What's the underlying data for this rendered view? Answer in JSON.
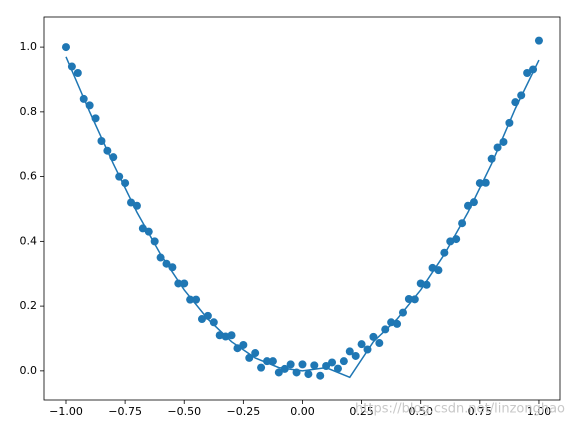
{
  "chart_data": {
    "type": "scatter",
    "xlim": [
      -1.093,
      1.089
    ],
    "ylim": [
      -0.09,
      1.093
    ],
    "xticks": [
      {
        "value": -1,
        "label": "−1.00"
      },
      {
        "value": -0.75,
        "label": "−0.75"
      },
      {
        "value": -0.5,
        "label": "−0.50"
      },
      {
        "value": -0.25,
        "label": "−0.25"
      },
      {
        "value": 0,
        "label": "0.00"
      },
      {
        "value": 0.25,
        "label": "0.25"
      },
      {
        "value": 0.5,
        "label": "0.50"
      },
      {
        "value": 0.75,
        "label": "0.75"
      },
      {
        "value": 1,
        "label": "1.00"
      }
    ],
    "yticks": [
      {
        "value": 0,
        "label": "0.0"
      },
      {
        "value": 0.2,
        "label": "0.2"
      },
      {
        "value": 0.4,
        "label": "0.4"
      },
      {
        "value": 0.6,
        "label": "0.6"
      },
      {
        "value": 0.8,
        "label": "0.8"
      },
      {
        "value": 1,
        "label": "1.0"
      }
    ],
    "annotation": "https://blog.csdn.net/linzonghao",
    "points": {
      "color": "#1f77b4",
      "x": [
        -1,
        -0.975,
        -0.95,
        -0.925,
        -0.9,
        -0.875,
        -0.85,
        -0.825,
        -0.8,
        -0.775,
        -0.75,
        -0.725,
        -0.7,
        -0.675,
        -0.65,
        -0.625,
        -0.6,
        -0.575,
        -0.55,
        -0.525,
        -0.5,
        -0.475,
        -0.45,
        -0.425,
        -0.4,
        -0.375,
        -0.35,
        -0.325,
        -0.3,
        -0.275,
        -0.25,
        -0.225,
        -0.2,
        -0.175,
        -0.15,
        -0.125,
        -0.1,
        -0.075,
        -0.05,
        -0.025,
        0,
        0.025,
        0.05,
        0.075,
        0.1,
        0.125,
        0.15,
        0.175,
        0.2,
        0.225,
        0.25,
        0.275,
        0.3,
        0.325,
        0.35,
        0.375,
        0.4,
        0.425,
        0.45,
        0.475,
        0.5,
        0.525,
        0.55,
        0.575,
        0.6,
        0.625,
        0.65,
        0.675,
        0.7,
        0.725,
        0.75,
        0.775,
        0.8,
        0.825,
        0.85,
        0.875,
        0.9,
        0.925,
        0.95,
        0.975,
        1
      ],
      "y": [
        1.0,
        0.94,
        0.92,
        0.84,
        0.82,
        0.78,
        0.71,
        0.68,
        0.66,
        0.6,
        0.58,
        0.52,
        0.51,
        0.44,
        0.43,
        0.4,
        0.35,
        0.331,
        0.32,
        0.27,
        0.27,
        0.22,
        0.22,
        0.16,
        0.17,
        0.15,
        0.11,
        0.106,
        0.11,
        0.07,
        0.08,
        0.04,
        0.055,
        0.01,
        0.03,
        0.03,
        -0.005,
        0.006,
        0.02,
        -0.005,
        0.02,
        -0.01,
        0.017,
        -0.015,
        0.015,
        0.026,
        0.007,
        0.03,
        0.06,
        0.046,
        0.0825,
        0.066,
        0.105,
        0.086,
        0.128,
        0.15,
        0.145,
        0.18,
        0.222,
        0.221,
        0.27,
        0.266,
        0.318,
        0.311,
        0.365,
        0.4,
        0.407,
        0.456,
        0.51,
        0.521,
        0.58,
        0.581,
        0.655,
        0.69,
        0.707,
        0.766,
        0.83,
        0.851,
        0.92,
        0.931,
        1.02
      ]
    },
    "line": {
      "color": "#1f77b4",
      "x": [
        -1,
        -0.9,
        -0.8,
        -0.7,
        -0.6,
        -0.5,
        -0.4,
        -0.3,
        -0.2,
        -0.1,
        0,
        0.1,
        0.2,
        0.3,
        0.4,
        0.5,
        0.6,
        0.7,
        0.8,
        0.9,
        1
      ],
      "y": [
        0.97,
        0.8,
        0.64,
        0.49,
        0.36,
        0.25,
        0.16,
        0.09,
        0.04,
        0.01,
        0,
        0.01,
        -0.02,
        0.09,
        0.16,
        0.25,
        0.36,
        0.49,
        0.64,
        0.81,
        0.96
      ]
    }
  }
}
